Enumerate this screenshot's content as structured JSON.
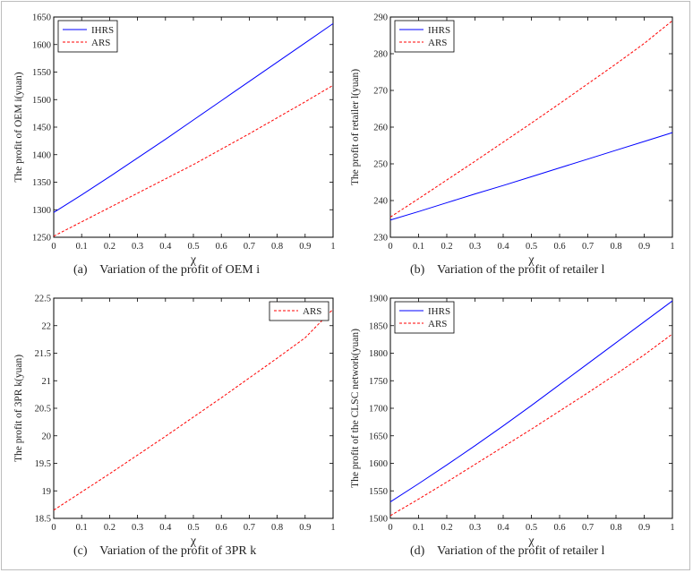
{
  "chart_data": [
    {
      "type": "line",
      "caption": "(a)    Variation of the profit of OEM i",
      "xlabel": "χ",
      "ylabel": "The profit of OEM i(yuan)",
      "xlim": [
        0,
        1
      ],
      "ylim": [
        1250,
        1650
      ],
      "xticks": [
        0,
        0.1,
        0.2,
        0.3,
        0.4,
        0.5,
        0.6,
        0.7,
        0.8,
        0.9,
        1
      ],
      "yticks": [
        1250,
        1300,
        1350,
        1400,
        1450,
        1500,
        1550,
        1600,
        1650
      ],
      "legend_position": "top-left",
      "series": [
        {
          "name": "IHRS",
          "color": "#0000ff",
          "dash": "solid",
          "x": [
            0,
            0.1,
            0.2,
            0.3,
            0.4,
            0.5,
            0.6,
            0.7,
            0.8,
            0.9,
            1
          ],
          "y": [
            1295,
            1327,
            1360,
            1394,
            1428,
            1463,
            1498,
            1533,
            1568,
            1603,
            1638
          ]
        },
        {
          "name": "ARS",
          "color": "#ff0000",
          "dash": "dashed",
          "x": [
            0,
            0.1,
            0.2,
            0.3,
            0.4,
            0.5,
            0.6,
            0.7,
            0.8,
            0.9,
            1
          ],
          "y": [
            1252,
            1278,
            1304,
            1330,
            1356,
            1382,
            1410,
            1438,
            1467,
            1496,
            1526
          ]
        }
      ]
    },
    {
      "type": "line",
      "caption": "(b)    Variation of the profit of retailer l",
      "xlabel": "χ",
      "ylabel": "The profit of retailer l(yuan)",
      "xlim": [
        0,
        1
      ],
      "ylim": [
        230,
        290
      ],
      "xticks": [
        0,
        0.1,
        0.2,
        0.3,
        0.4,
        0.5,
        0.6,
        0.7,
        0.8,
        0.9,
        1
      ],
      "yticks": [
        230,
        240,
        250,
        260,
        270,
        280,
        290
      ],
      "legend_position": "top-left",
      "series": [
        {
          "name": "IHRS",
          "color": "#0000ff",
          "dash": "solid",
          "x": [
            0,
            0.1,
            0.2,
            0.3,
            0.4,
            0.5,
            0.6,
            0.7,
            0.8,
            0.9,
            1
          ],
          "y": [
            234.7,
            237.0,
            239.4,
            241.8,
            244.1,
            246.5,
            248.9,
            251.3,
            253.7,
            256.1,
            258.5
          ]
        },
        {
          "name": "ARS",
          "color": "#ff0000",
          "dash": "dashed",
          "x": [
            0,
            0.1,
            0.2,
            0.3,
            0.4,
            0.5,
            0.6,
            0.7,
            0.8,
            0.9,
            1
          ],
          "y": [
            235.5,
            240.5,
            245.6,
            250.7,
            255.9,
            261.1,
            266.4,
            271.8,
            277.2,
            282.8,
            289.0
          ]
        }
      ]
    },
    {
      "type": "line",
      "caption": "(c)    Variation of the profit of 3PR k",
      "xlabel": "χ",
      "ylabel": "The profit of 3PR k(yuan)",
      "xlim": [
        0,
        1
      ],
      "ylim": [
        18.5,
        22.5
      ],
      "xticks": [
        0,
        0.1,
        0.2,
        0.3,
        0.4,
        0.5,
        0.6,
        0.7,
        0.8,
        0.9,
        1
      ],
      "yticks": [
        18.5,
        19,
        19.5,
        20,
        20.5,
        21,
        21.5,
        22,
        22.5
      ],
      "legend_position": "top-right",
      "series": [
        {
          "name": "ARS",
          "color": "#ff0000",
          "dash": "dashed",
          "x": [
            0,
            0.1,
            0.2,
            0.3,
            0.4,
            0.5,
            0.6,
            0.7,
            0.8,
            0.9,
            1
          ],
          "y": [
            18.65,
            18.98,
            19.31,
            19.65,
            19.99,
            20.34,
            20.69,
            21.05,
            21.41,
            21.78,
            22.3
          ]
        }
      ]
    },
    {
      "type": "line",
      "caption": "(d)    Variation of the profit of retailer l",
      "xlabel": "χ",
      "ylabel": "The profit of the CLSC network(yuan)",
      "xlim": [
        0,
        1
      ],
      "ylim": [
        1500,
        1900
      ],
      "xticks": [
        0,
        0.1,
        0.2,
        0.3,
        0.4,
        0.5,
        0.6,
        0.7,
        0.8,
        0.9,
        1
      ],
      "yticks": [
        1500,
        1550,
        1600,
        1650,
        1700,
        1750,
        1800,
        1850,
        1900
      ],
      "legend_position": "top-left",
      "series": [
        {
          "name": "IHRS",
          "color": "#0000ff",
          "dash": "solid",
          "x": [
            0,
            0.1,
            0.2,
            0.3,
            0.4,
            0.5,
            0.6,
            0.7,
            0.8,
            0.9,
            1
          ],
          "y": [
            1530,
            1563,
            1597,
            1632,
            1668,
            1705,
            1743,
            1781,
            1819,
            1857,
            1895
          ]
        },
        {
          "name": "ARS",
          "color": "#ff0000",
          "dash": "dashed",
          "x": [
            0,
            0.1,
            0.2,
            0.3,
            0.4,
            0.5,
            0.6,
            0.7,
            0.8,
            0.9,
            1
          ],
          "y": [
            1505,
            1535,
            1566,
            1598,
            1630,
            1662,
            1695,
            1728,
            1762,
            1797,
            1835
          ]
        }
      ]
    }
  ]
}
